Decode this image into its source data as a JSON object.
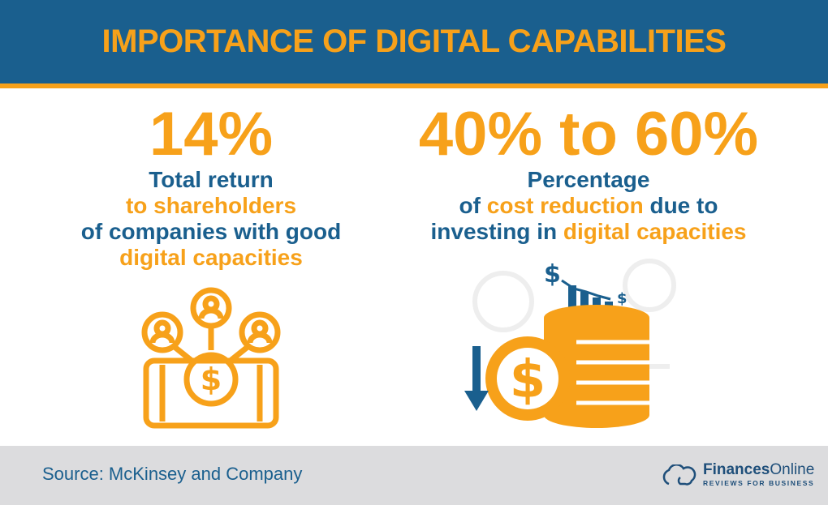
{
  "header": {
    "title": "IMPORTANCE OF DIGITAL CAPABILITIES"
  },
  "left_stat": {
    "value": "14%",
    "line1": "Total return",
    "line2": "to shareholders",
    "line3": "of companies with good",
    "line4": "digital capacities"
  },
  "right_stat": {
    "value": "40% to 60%",
    "line1": "Percentage",
    "line2_pre": "of ",
    "line2_hl": "cost reduction",
    "line2_post": " due to",
    "line3_pre": "investing in ",
    "line3_hl": "digital capacities"
  },
  "icons": {
    "left": "team-money-phone-icon",
    "right": "coin-stack-cost-reduction-icon"
  },
  "footer": {
    "source": "Source: McKinsey and Company",
    "logo_name_bold": "Finances",
    "logo_name_rest": "Online",
    "logo_tagline": "REVIEWS FOR BUSINESS"
  },
  "colors": {
    "primary_blue": "#1a5f8e",
    "accent_orange": "#f7a11a",
    "footer_gray": "#dcdcde"
  }
}
